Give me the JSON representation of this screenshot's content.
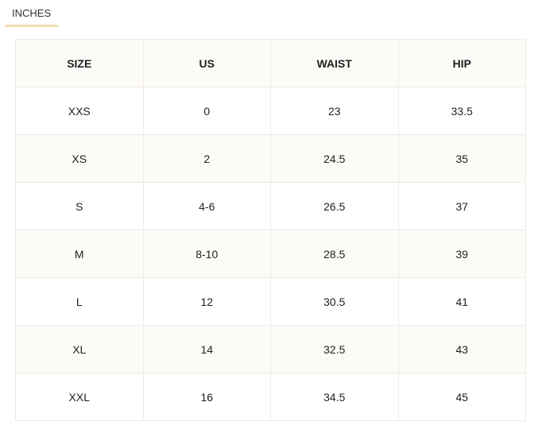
{
  "tab": {
    "label": "INCHES",
    "underline_color": "#efdcad"
  },
  "table": {
    "headers": [
      "SIZE",
      "US",
      "WAIST",
      "HIP"
    ],
    "rows": [
      [
        "XXS",
        "0",
        "23",
        "33.5"
      ],
      [
        "XS",
        "2",
        "24.5",
        "35"
      ],
      [
        "S",
        "4-6",
        "26.5",
        "37"
      ],
      [
        "M",
        "8-10",
        "28.5",
        "39"
      ],
      [
        "L",
        "12",
        "30.5",
        "41"
      ],
      [
        "XL",
        "14",
        "32.5",
        "43"
      ],
      [
        "XXL",
        "16",
        "34.5",
        "45"
      ]
    ]
  }
}
